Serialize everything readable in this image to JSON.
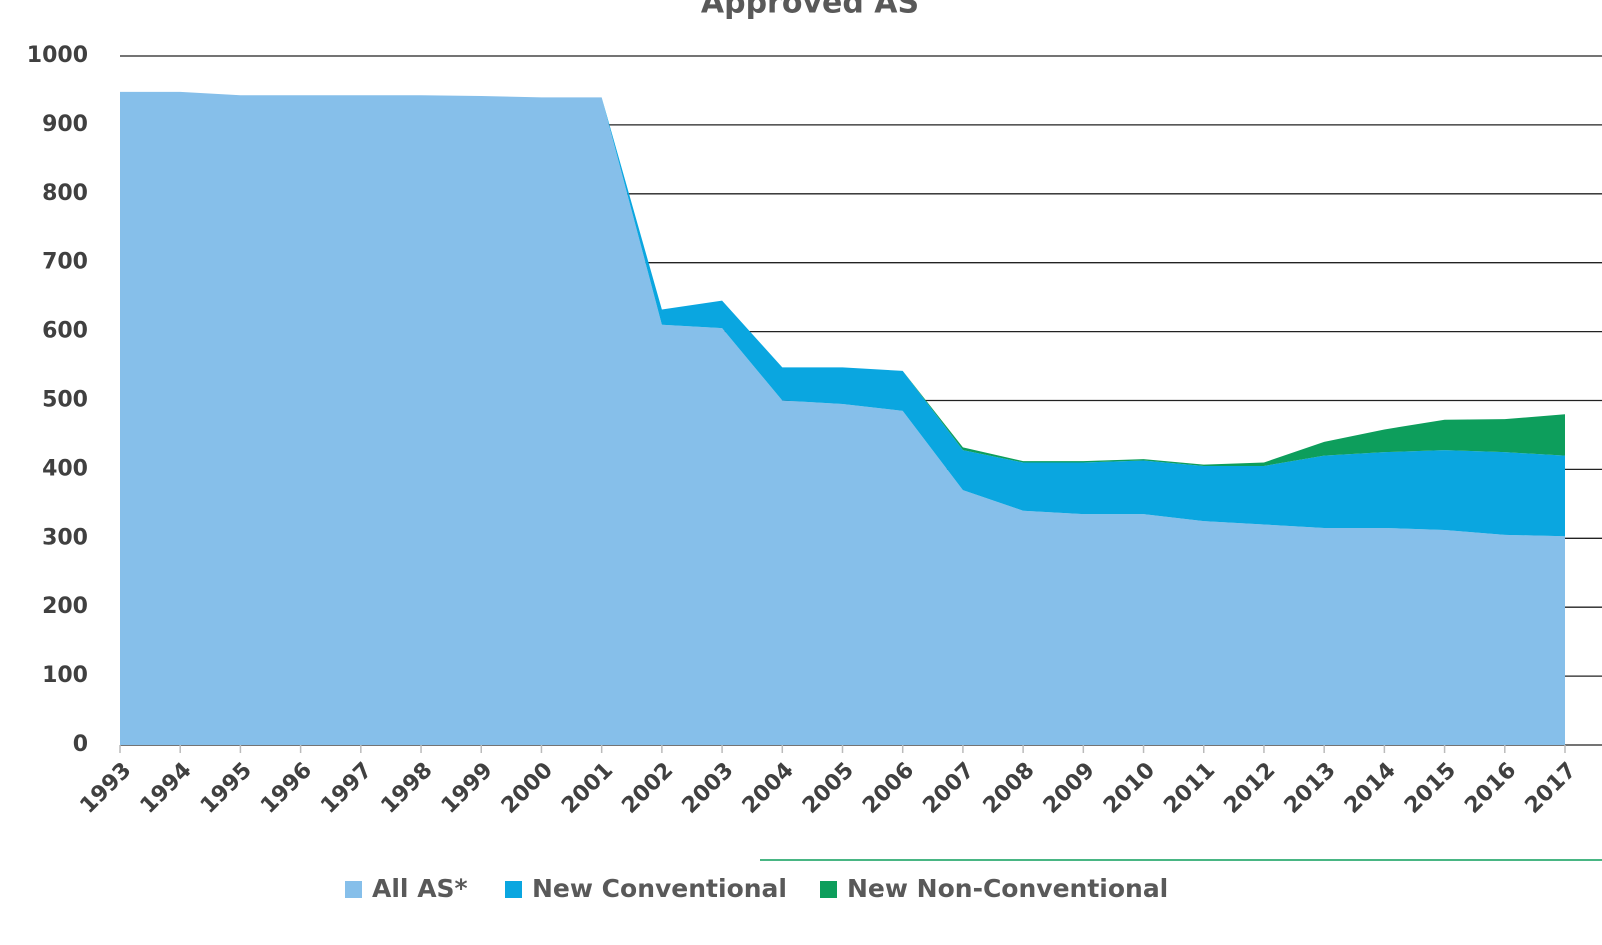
{
  "chart_data": {
    "type": "area",
    "stacked": true,
    "title": "Approved AS",
    "categories": [
      "1993",
      "1994",
      "1995",
      "1996",
      "1997",
      "1998",
      "1999",
      "2000",
      "2001",
      "2002",
      "2003",
      "2004",
      "2005",
      "2006",
      "2007",
      "2008",
      "2009",
      "2010",
      "2011",
      "2012",
      "2013",
      "2014",
      "2015",
      "2016",
      "2017"
    ],
    "series": [
      {
        "name": "All AS*",
        "color": "#86bfea",
        "values": [
          948,
          948,
          943,
          943,
          943,
          943,
          942,
          940,
          940,
          610,
          605,
          500,
          495,
          485,
          370,
          340,
          335,
          335,
          325,
          320,
          315,
          315,
          312,
          305,
          303
        ]
      },
      {
        "name": "New Conventional",
        "color": "#0aa6e0",
        "values": [
          0,
          0,
          0,
          0,
          0,
          0,
          0,
          0,
          0,
          22,
          40,
          48,
          53,
          58,
          58,
          70,
          75,
          78,
          80,
          85,
          105,
          110,
          116,
          120,
          117
        ]
      },
      {
        "name": "New Non-Conventional",
        "color": "#0d9e5c",
        "values": [
          0,
          0,
          0,
          0,
          0,
          0,
          0,
          0,
          0,
          0,
          0,
          0,
          0,
          0,
          4,
          2,
          2,
          2,
          2,
          5,
          20,
          33,
          44,
          48,
          60
        ]
      }
    ],
    "ylim": [
      0,
      1000
    ],
    "yticks": [
      0,
      100,
      200,
      300,
      400,
      500,
      600,
      700,
      800,
      900,
      1000
    ],
    "grid": true
  }
}
